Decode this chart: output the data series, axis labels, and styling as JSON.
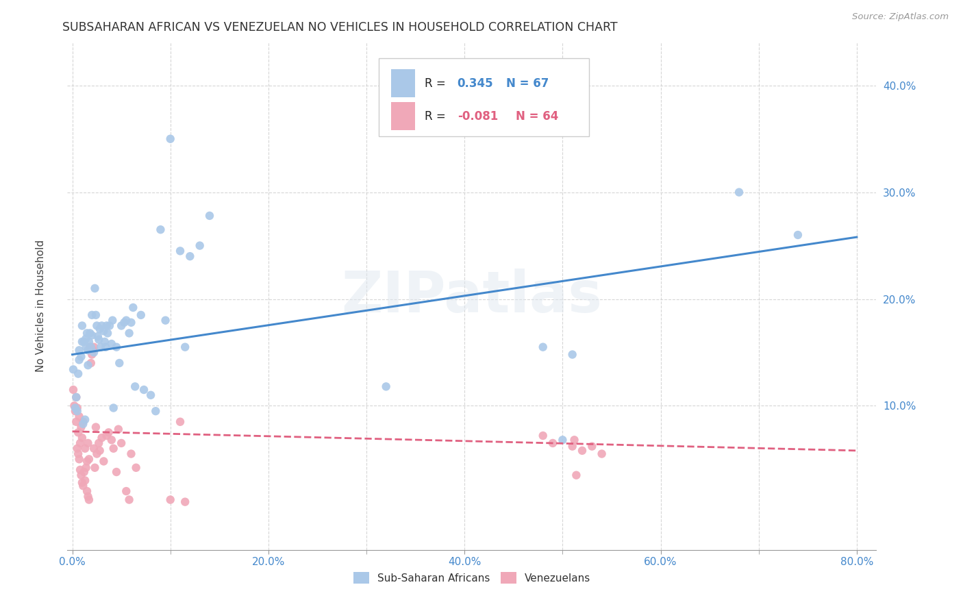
{
  "title": "SUBSAHARAN AFRICAN VS VENEZUELAN NO VEHICLES IN HOUSEHOLD CORRELATION CHART",
  "source": "Source: ZipAtlas.com",
  "xlabel_ticks": [
    "0.0%",
    "",
    "20.0%",
    "",
    "40.0%",
    "",
    "60.0%",
    "",
    "80.0%"
  ],
  "xlabel_vals": [
    0.0,
    0.1,
    0.2,
    0.3,
    0.4,
    0.5,
    0.6,
    0.7,
    0.8
  ],
  "xlabel_show": [
    "0.0%",
    "20.0%",
    "40.0%",
    "60.0%",
    "80.0%"
  ],
  "xlabel_show_vals": [
    0.0,
    0.2,
    0.4,
    0.6,
    0.8
  ],
  "ylabel_ticks": [
    "10.0%",
    "20.0%",
    "30.0%",
    "40.0%"
  ],
  "ylabel_vals": [
    0.1,
    0.2,
    0.3,
    0.4
  ],
  "xlim": [
    -0.005,
    0.82
  ],
  "ylim": [
    -0.035,
    0.44
  ],
  "legend_bottom": [
    "Sub-Saharan Africans",
    "Venezuelans"
  ],
  "blue_color": "#aac8e8",
  "pink_color": "#f0a8b8",
  "trendline_blue": "#4488cc",
  "trendline_pink": "#e06080",
  "blue_scatter": [
    [
      0.001,
      0.134
    ],
    [
      0.003,
      0.098
    ],
    [
      0.004,
      0.108
    ],
    [
      0.005,
      0.095
    ],
    [
      0.006,
      0.13
    ],
    [
      0.007,
      0.143
    ],
    [
      0.007,
      0.152
    ],
    [
      0.009,
      0.146
    ],
    [
      0.01,
      0.16
    ],
    [
      0.01,
      0.175
    ],
    [
      0.011,
      0.083
    ],
    [
      0.012,
      0.16
    ],
    [
      0.013,
      0.087
    ],
    [
      0.014,
      0.155
    ],
    [
      0.014,
      0.163
    ],
    [
      0.015,
      0.168
    ],
    [
      0.016,
      0.152
    ],
    [
      0.016,
      0.138
    ],
    [
      0.017,
      0.16
    ],
    [
      0.018,
      0.168
    ],
    [
      0.019,
      0.155
    ],
    [
      0.02,
      0.166
    ],
    [
      0.02,
      0.185
    ],
    [
      0.022,
      0.15
    ],
    [
      0.023,
      0.21
    ],
    [
      0.024,
      0.185
    ],
    [
      0.025,
      0.175
    ],
    [
      0.026,
      0.165
    ],
    [
      0.027,
      0.162
    ],
    [
      0.028,
      0.172
    ],
    [
      0.029,
      0.155
    ],
    [
      0.03,
      0.175
    ],
    [
      0.032,
      0.17
    ],
    [
      0.033,
      0.16
    ],
    [
      0.034,
      0.155
    ],
    [
      0.035,
      0.175
    ],
    [
      0.036,
      0.168
    ],
    [
      0.038,
      0.175
    ],
    [
      0.04,
      0.158
    ],
    [
      0.041,
      0.18
    ],
    [
      0.042,
      0.098
    ],
    [
      0.045,
      0.155
    ],
    [
      0.048,
      0.14
    ],
    [
      0.05,
      0.175
    ],
    [
      0.053,
      0.178
    ],
    [
      0.055,
      0.18
    ],
    [
      0.058,
      0.168
    ],
    [
      0.06,
      0.178
    ],
    [
      0.062,
      0.192
    ],
    [
      0.064,
      0.118
    ],
    [
      0.07,
      0.185
    ],
    [
      0.073,
      0.115
    ],
    [
      0.08,
      0.11
    ],
    [
      0.085,
      0.095
    ],
    [
      0.09,
      0.265
    ],
    [
      0.095,
      0.18
    ],
    [
      0.1,
      0.35
    ],
    [
      0.11,
      0.245
    ],
    [
      0.115,
      0.155
    ],
    [
      0.12,
      0.24
    ],
    [
      0.13,
      0.25
    ],
    [
      0.14,
      0.278
    ],
    [
      0.32,
      0.118
    ],
    [
      0.48,
      0.155
    ],
    [
      0.5,
      0.068
    ],
    [
      0.51,
      0.148
    ],
    [
      0.68,
      0.3
    ],
    [
      0.74,
      0.26
    ]
  ],
  "pink_scatter": [
    [
      0.001,
      0.115
    ],
    [
      0.002,
      0.1
    ],
    [
      0.003,
      0.095
    ],
    [
      0.004,
      0.108
    ],
    [
      0.004,
      0.085
    ],
    [
      0.005,
      0.098
    ],
    [
      0.005,
      0.06
    ],
    [
      0.006,
      0.075
    ],
    [
      0.006,
      0.055
    ],
    [
      0.007,
      0.09
    ],
    [
      0.007,
      0.05
    ],
    [
      0.008,
      0.065
    ],
    [
      0.008,
      0.04
    ],
    [
      0.009,
      0.08
    ],
    [
      0.009,
      0.035
    ],
    [
      0.01,
      0.07
    ],
    [
      0.01,
      0.028
    ],
    [
      0.011,
      0.085
    ],
    [
      0.011,
      0.025
    ],
    [
      0.012,
      0.038
    ],
    [
      0.013,
      0.06
    ],
    [
      0.013,
      0.03
    ],
    [
      0.014,
      0.042
    ],
    [
      0.015,
      0.048
    ],
    [
      0.015,
      0.02
    ],
    [
      0.016,
      0.065
    ],
    [
      0.016,
      0.015
    ],
    [
      0.017,
      0.05
    ],
    [
      0.017,
      0.012
    ],
    [
      0.018,
      0.155
    ],
    [
      0.019,
      0.14
    ],
    [
      0.02,
      0.148
    ],
    [
      0.021,
      0.152
    ],
    [
      0.022,
      0.155
    ],
    [
      0.022,
      0.06
    ],
    [
      0.023,
      0.042
    ],
    [
      0.024,
      0.08
    ],
    [
      0.025,
      0.055
    ],
    [
      0.027,
      0.065
    ],
    [
      0.028,
      0.058
    ],
    [
      0.03,
      0.07
    ],
    [
      0.032,
      0.048
    ],
    [
      0.035,
      0.072
    ],
    [
      0.037,
      0.075
    ],
    [
      0.04,
      0.068
    ],
    [
      0.042,
      0.06
    ],
    [
      0.045,
      0.038
    ],
    [
      0.047,
      0.078
    ],
    [
      0.05,
      0.065
    ],
    [
      0.055,
      0.02
    ],
    [
      0.058,
      0.012
    ],
    [
      0.06,
      0.055
    ],
    [
      0.065,
      0.042
    ],
    [
      0.1,
      0.012
    ],
    [
      0.11,
      0.085
    ],
    [
      0.115,
      0.01
    ],
    [
      0.48,
      0.072
    ],
    [
      0.49,
      0.065
    ],
    [
      0.51,
      0.062
    ],
    [
      0.512,
      0.068
    ],
    [
      0.514,
      0.035
    ],
    [
      0.52,
      0.058
    ],
    [
      0.53,
      0.062
    ],
    [
      0.54,
      0.055
    ]
  ],
  "blue_trend_x": [
    0.0,
    0.8
  ],
  "blue_trend_y": [
    0.148,
    0.258
  ],
  "pink_trend_x": [
    0.0,
    0.8
  ],
  "pink_trend_y": [
    0.076,
    0.058
  ],
  "watermark": "ZIPatlas",
  "background_color": "#ffffff",
  "grid_color": "#cccccc"
}
